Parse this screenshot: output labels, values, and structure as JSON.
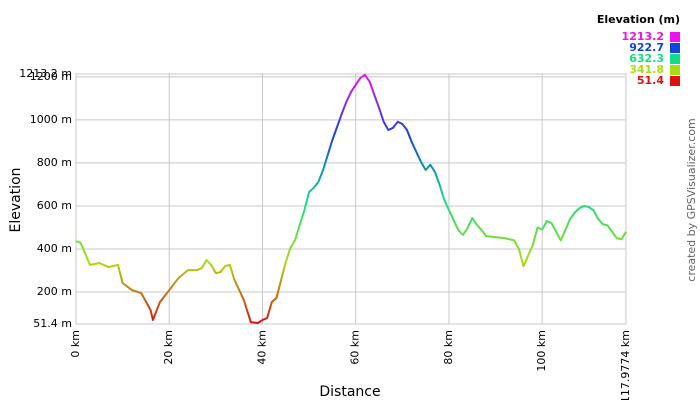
{
  "chart_data": {
    "type": "line",
    "y_label": "Elevation",
    "x_label": "Distance",
    "credit": "created by GPSVisualizer.com",
    "legend_title": "Elevation (m)",
    "legend": [
      {
        "value": 1213.2,
        "color": "#ee11ee"
      },
      {
        "value": 922.7,
        "color": "#1144dd"
      },
      {
        "value": 632.3,
        "color": "#11dd88"
      },
      {
        "value": 341.8,
        "color": "#aadd11"
      },
      {
        "value": 51.4,
        "color": "#dd1111"
      }
    ],
    "grid": true,
    "xlim": [
      0,
      117.9774
    ],
    "ylim": [
      51.4,
      1213.2
    ],
    "xticks": [
      {
        "value": 0,
        "label": "0 km"
      },
      {
        "value": 20,
        "label": "20 km"
      },
      {
        "value": 40,
        "label": "40 km"
      },
      {
        "value": 60,
        "label": "60 km"
      },
      {
        "value": 80,
        "label": "80 km"
      },
      {
        "value": 100,
        "label": "100 km"
      },
      {
        "value": 117.9774,
        "label": "117.9774 km"
      }
    ],
    "yticks": [
      {
        "value": 51.4,
        "label": "51.4 m"
      },
      {
        "value": 200,
        "label": "200 m"
      },
      {
        "value": 400,
        "label": "400 m"
      },
      {
        "value": 600,
        "label": "600 m"
      },
      {
        "value": 800,
        "label": "800 m"
      },
      {
        "value": 1000,
        "label": "1000 m"
      },
      {
        "value": 1200,
        "label": "1200 m"
      },
      {
        "value": 1213.2,
        "label": "1213.2 m"
      }
    ],
    "x": [
      0,
      1,
      3,
      5,
      7,
      9,
      10,
      12,
      14,
      16,
      16.5,
      18,
      20,
      22,
      24,
      26,
      27,
      28,
      29,
      30,
      31,
      32,
      33,
      34,
      36,
      37.5,
      39,
      40,
      41,
      42,
      43,
      44,
      45,
      46,
      47,
      48,
      49,
      50,
      51,
      52,
      53,
      54,
      55,
      56,
      57,
      58,
      59,
      60,
      61,
      62,
      63,
      64,
      65,
      66,
      67,
      68,
      69,
      70,
      71,
      72,
      73,
      74,
      75,
      76,
      77,
      78,
      79,
      80,
      81,
      82,
      83,
      84,
      85,
      86,
      87,
      88,
      90,
      92,
      94,
      95,
      96,
      97,
      98,
      99,
      100,
      101,
      102,
      103,
      104,
      105,
      106,
      107,
      108,
      109,
      110,
      111,
      112,
      113,
      114,
      115,
      116,
      117,
      117.9774
    ],
    "values": [
      437,
      428,
      326,
      335,
      316,
      326,
      242,
      209,
      195,
      116,
      70,
      153,
      209,
      265,
      302,
      302,
      312,
      349,
      326,
      288,
      293,
      321,
      326,
      256,
      163,
      60,
      56,
      70,
      79,
      153,
      172,
      256,
      340,
      405,
      442,
      512,
      581,
      665,
      684,
      712,
      767,
      837,
      907,
      967,
      1028,
      1084,
      1130,
      1163,
      1195,
      1209,
      1177,
      1116,
      1056,
      991,
      953,
      963,
      991,
      981,
      953,
      898,
      851,
      805,
      767,
      791,
      758,
      698,
      628,
      581,
      535,
      488,
      465,
      498,
      544,
      512,
      488,
      460,
      455,
      450,
      440,
      400,
      320,
      370,
      420,
      500,
      490,
      530,
      520,
      480,
      440,
      490,
      540,
      570,
      590,
      600,
      595,
      580,
      540,
      515,
      510,
      480,
      450,
      445,
      480
    ]
  }
}
